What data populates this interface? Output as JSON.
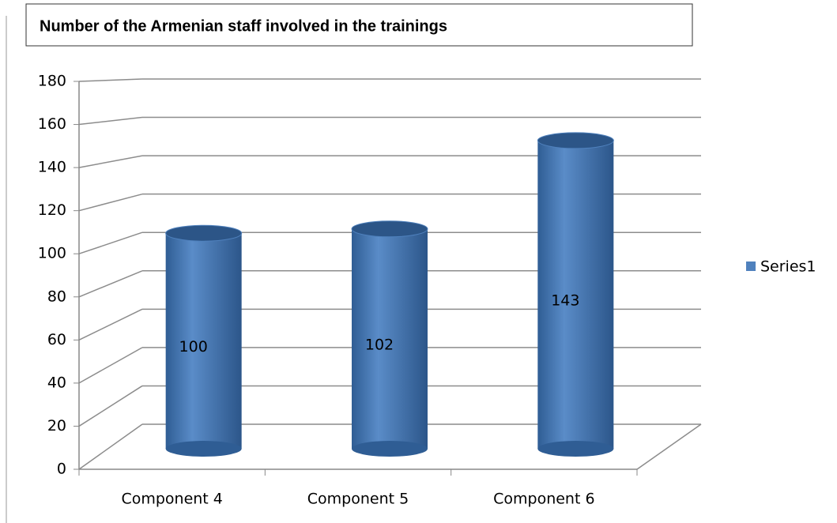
{
  "chart_data": {
    "type": "bar",
    "title": "Number of the Armenian staff involved in the trainings",
    "categories": [
      "Component 4",
      "Component 5",
      "Component 6"
    ],
    "series": [
      {
        "name": "Series1",
        "color": "#4f81bd",
        "values": [
          100,
          102,
          143
        ]
      }
    ],
    "ylim": [
      0,
      180
    ],
    "yticks": [
      0,
      20,
      40,
      60,
      80,
      100,
      120,
      140,
      160,
      180
    ],
    "grid": true,
    "legend": "right"
  }
}
